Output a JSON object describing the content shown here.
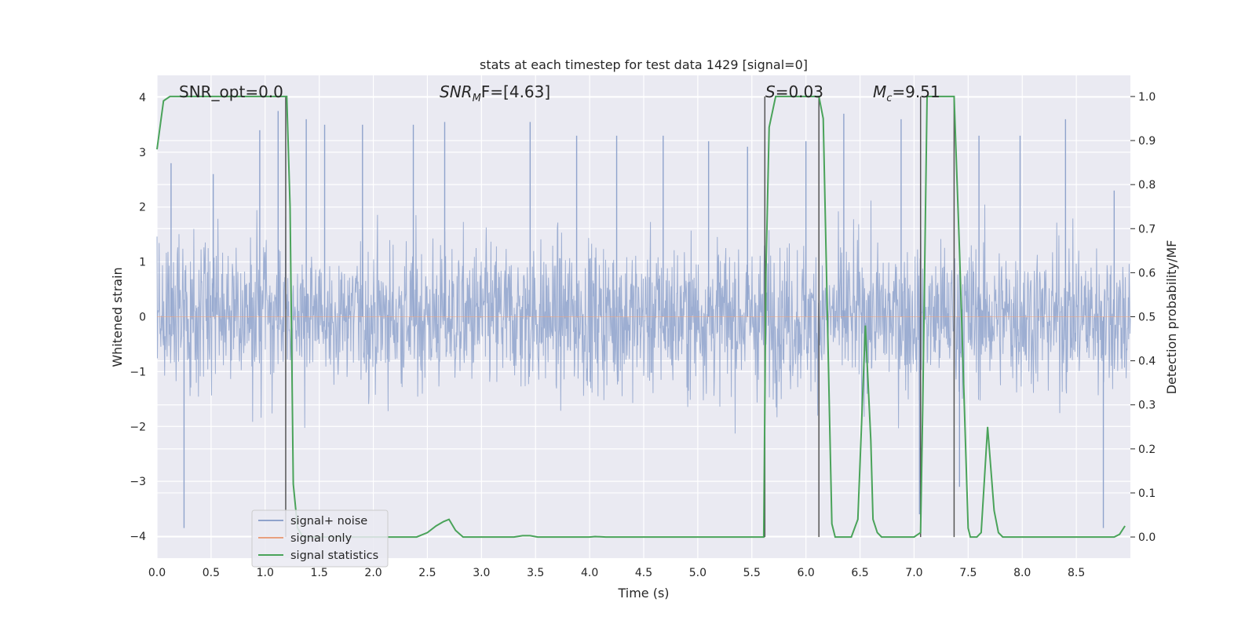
{
  "chart_data": {
    "type": "line",
    "title": "stats at each timestep for test data 1429 [signal=0]",
    "xlabel": "Time (s)",
    "ylabel": "Whitened strain",
    "ylabel_right": "Detection probability/MF",
    "xlim": [
      0.0,
      9.0
    ],
    "ylim": [
      -4.4,
      4.4
    ],
    "ylim_right": [
      -0.048,
      1.048
    ],
    "x_ticks": [
      "0.0",
      "0.5",
      "1.0",
      "1.5",
      "2.0",
      "2.5",
      "3.0",
      "3.5",
      "4.0",
      "4.5",
      "5.0",
      "5.5",
      "6.0",
      "6.5",
      "7.0",
      "7.5",
      "8.0",
      "8.5"
    ],
    "x_tick_values": [
      0,
      0.5,
      1,
      1.5,
      2,
      2.5,
      3,
      3.5,
      4,
      4.5,
      5,
      5.5,
      6,
      6.5,
      7,
      7.5,
      8,
      8.5
    ],
    "y_ticks": [
      "4",
      "3",
      "2",
      "1",
      "0",
      "−1",
      "−2",
      "−3",
      "−4"
    ],
    "y_tick_values": [
      4,
      3,
      2,
      1,
      0,
      -1,
      -2,
      -3,
      -4
    ],
    "y_right_ticks": [
      "1.0",
      "0.9",
      "0.8",
      "0.7",
      "0.6",
      "0.5",
      "0.4",
      "0.3",
      "0.2",
      "0.1",
      "0.0"
    ],
    "y_right_tick_values": [
      1.0,
      0.9,
      0.8,
      0.7,
      0.6,
      0.5,
      0.4,
      0.3,
      0.2,
      0.1,
      0.0
    ],
    "grid": true,
    "legend_position": "lower-left",
    "annotations": {
      "snr_opt": "SNR_opt=0.0",
      "snr_mf_main": "SNR",
      "snr_mf_sub": "M",
      "snr_mf_rest": "F=[4.63]",
      "s_label": "S",
      "s_value": "=0.03",
      "mc_main": "M",
      "mc_sub": "c",
      "mc_value": "=9.51"
    },
    "series": [
      {
        "name": "signal+ noise",
        "color": "#8fa3cc",
        "axis": "left",
        "description_values": "dense noise, amplitude envelope about ±2.5, peaks to ±3.8",
        "envelope_peaks_x": [
          0.13,
          0.25,
          0.52,
          0.95,
          1.12,
          1.38,
          1.55,
          1.9,
          2.37,
          2.66,
          3.45,
          3.88,
          4.25,
          4.68,
          5.1,
          5.46,
          6.0,
          6.35,
          6.88,
          7.05,
          7.42,
          7.6,
          7.98,
          8.4,
          8.75,
          8.85
        ],
        "envelope_peaks_y": [
          2.8,
          -3.85,
          2.6,
          3.4,
          3.75,
          3.6,
          3.5,
          3.5,
          3.5,
          3.55,
          3.55,
          3.3,
          3.3,
          3.3,
          3.2,
          3.1,
          3.2,
          3.7,
          3.6,
          -3.6,
          -3.1,
          3.3,
          3.3,
          3.6,
          -3.85,
          2.3
        ]
      },
      {
        "name": "signal only",
        "color": "#e8a07f",
        "axis": "left",
        "values_note": "flat at 0 (no signal)"
      },
      {
        "name": "signal statistics",
        "color": "#4aa35a",
        "axis": "right",
        "x": [
          0.0,
          0.06,
          0.12,
          0.2,
          1.0,
          1.1,
          1.18,
          1.2,
          1.23,
          1.26,
          1.3,
          1.35,
          2.0,
          2.4,
          2.5,
          2.58,
          2.65,
          2.7,
          2.76,
          2.83,
          2.9,
          3.3,
          3.38,
          3.45,
          3.52,
          3.6,
          4.0,
          4.05,
          4.15,
          5.0,
          5.61,
          5.63,
          5.66,
          5.72,
          5.8,
          6.12,
          6.16,
          6.22,
          6.24,
          6.27,
          6.3,
          6.42,
          6.48,
          6.55,
          6.6,
          6.62,
          6.66,
          6.7,
          7.0,
          7.06,
          7.08,
          7.12,
          7.15,
          7.37,
          7.42,
          7.5,
          7.52,
          7.58,
          7.62,
          7.68,
          7.74,
          7.78,
          7.82,
          8.0,
          8.5,
          8.85,
          8.9,
          8.95
        ],
        "values": [
          0.88,
          0.99,
          1.0,
          1.0,
          1.0,
          1.0,
          1.0,
          1.0,
          0.75,
          0.12,
          0.02,
          0.0,
          0.0,
          0.0,
          0.01,
          0.025,
          0.035,
          0.04,
          0.015,
          0.0,
          0.0,
          0.0,
          0.003,
          0.003,
          0.0,
          0.0,
          0.0,
          0.001,
          0.0,
          0.0,
          0.0,
          0.6,
          0.93,
          1.0,
          1.0,
          1.0,
          0.95,
          0.25,
          0.03,
          0.0,
          0.0,
          0.0,
          0.04,
          0.48,
          0.22,
          0.04,
          0.01,
          0.0,
          0.0,
          0.01,
          0.3,
          1.0,
          1.0,
          1.0,
          0.65,
          0.02,
          0.0,
          0.0,
          0.01,
          0.25,
          0.06,
          0.01,
          0.0,
          0.0,
          0.0,
          0.0,
          0.006,
          0.025
        ]
      }
    ],
    "vertical_markers_x": [
      1.19,
      5.62,
      6.12,
      7.06,
      7.37
    ]
  }
}
